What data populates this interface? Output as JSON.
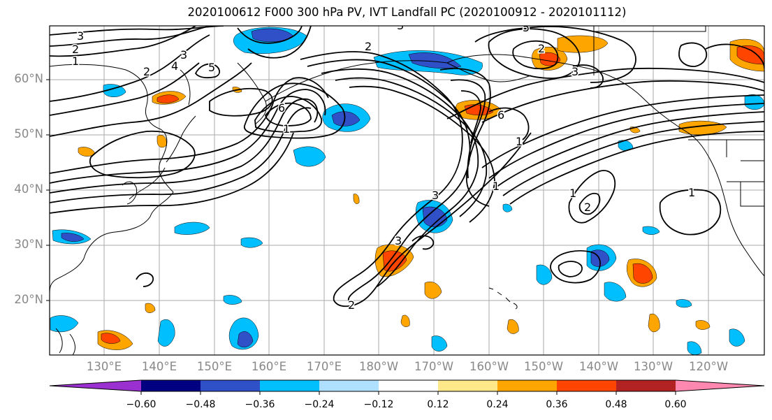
{
  "title": "2020100612 F000 300 hPa PV, IVT Landfall PC (2020100912 - 2020101112)",
  "map": {
    "latitude_labels": [
      "60°N",
      "50°N",
      "40°N",
      "30°N",
      "20°N"
    ],
    "longitude_labels": [
      "130°E",
      "140°E",
      "150°E",
      "160°E",
      "170°E",
      "180°W",
      "170°W",
      "160°W",
      "150°W",
      "140°W",
      "130°W",
      "120°W"
    ],
    "contour_labels": [
      "3",
      "2",
      "1",
      "3",
      "2",
      "4",
      "5",
      "6",
      "3",
      "2",
      "1",
      "5",
      "6",
      "2",
      "3",
      "1",
      "3",
      "2",
      "1",
      "3",
      "1",
      "2",
      "1"
    ]
  },
  "colorbar": {
    "tick_labels": [
      "−0.60",
      "−0.48",
      "−0.36",
      "−0.24",
      "−0.12",
      "0.12",
      "0.24",
      "0.36",
      "0.48",
      "0.60"
    ],
    "colors": [
      "#9b30d0",
      "#000080",
      "#3050c8",
      "#00bfff",
      "#b0e0ff",
      "#ffffff",
      "#ffe88a",
      "#ffa500",
      "#ff4500",
      "#b22222",
      "#ff88b0"
    ]
  }
}
